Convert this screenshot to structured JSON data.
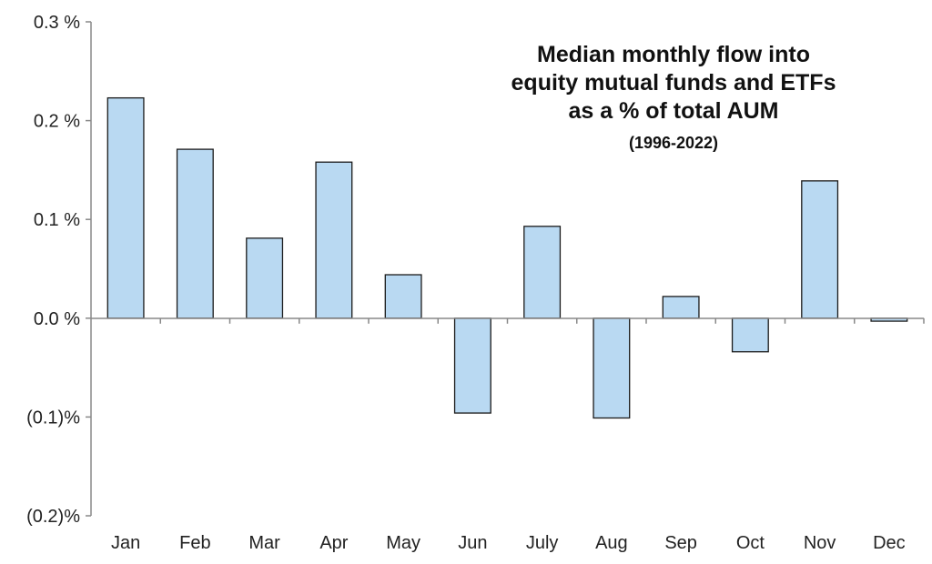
{
  "chart_data": {
    "type": "bar",
    "title": [
      "Median monthly flow into",
      "equity mutual funds and ETFs",
      "as a % of total AUM"
    ],
    "subtitle": "(1996-2022)",
    "xlabel": "",
    "ylabel": "",
    "categories": [
      "Jan",
      "Feb",
      "Mar",
      "Apr",
      "May",
      "Jun",
      "July",
      "Aug",
      "Sep",
      "Oct",
      "Nov",
      "Dec"
    ],
    "values": [
      0.223,
      0.171,
      0.081,
      0.158,
      0.044,
      -0.096,
      0.093,
      -0.101,
      0.022,
      -0.034,
      0.139,
      -0.003
    ],
    "ylim": [
      -0.2,
      0.3
    ],
    "y_ticks": [
      0.3,
      0.2,
      0.1,
      0.0,
      -0.1,
      -0.2
    ],
    "y_tick_labels": [
      "0.3 %",
      "0.2 %",
      "0.1 %",
      "0.0 %",
      "(0.1)%",
      "(0.2)%"
    ],
    "grid": false,
    "legend": "none",
    "colors": {
      "bar_fill": "#b9d9f2",
      "bar_stroke": "#1a1a1a",
      "axis": "#888888"
    }
  }
}
